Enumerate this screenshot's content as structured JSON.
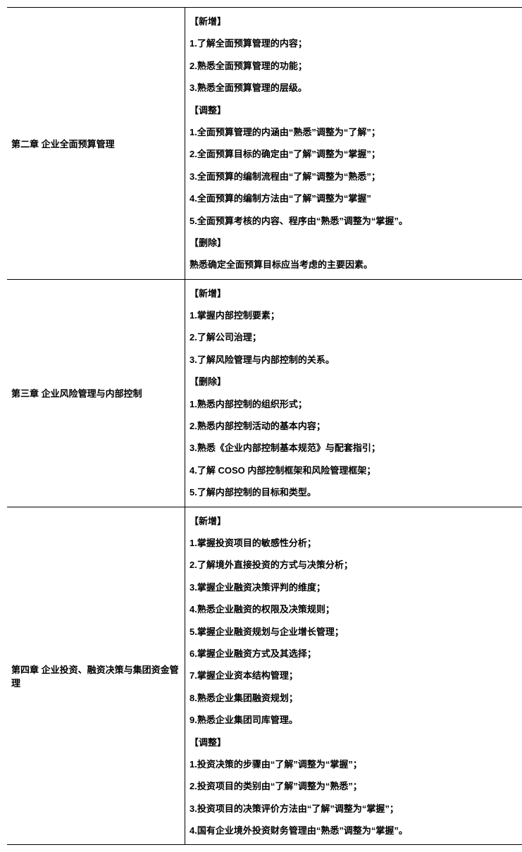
{
  "rows": [
    {
      "chapter": "第二章 企业全面预算管理",
      "lines": [
        "【新增】",
        "1.了解全面预算管理的内容；",
        "2.熟悉全面预算管理的功能；",
        "3.熟悉全面预算管理的层级。",
        "【调整】",
        "1.全面预算管理的内涵由“熟悉”调整为“了解”；",
        "2.全面预算目标的确定由“了解”调整为“掌握”；",
        "3.全面预算的编制流程由“了解”调整为“熟悉”；",
        "4.全面预算的编制方法由“了解”调整为“掌握”",
        "5.全面预算考核的内容、程序由“熟悉”调整为“掌握”。",
        "【删除】",
        "熟悉确定全面预算目标应当考虑的主要因素。"
      ]
    },
    {
      "chapter": "第三章 企业风险管理与内部控制",
      "lines": [
        "【新增】",
        "1.掌握内部控制要素；",
        "2.了解公司治理；",
        "3.了解风险管理与内部控制的关系。",
        "【删除】",
        "1.熟悉内部控制的组织形式；",
        "2.熟悉内部控制活动的基本内容；",
        "3.熟悉《企业内部控制基本规范》与配套指引；",
        "4.了解 COSO 内部控制框架和风险管理框架；",
        "5.了解内部控制的目标和类型。"
      ]
    },
    {
      "chapter": "第四章 企业投资、融资决策与集团资金管理",
      "lines": [
        "【新增】",
        "1.掌握投资项目的敏感性分析；",
        "2.了解境外直接投资的方式与决策分析；",
        "3.掌握企业融资决策评判的维度；",
        "4.熟悉企业融资的权限及决策规则；",
        "5.掌握企业融资规划与企业增长管理；",
        "6.掌握企业融资方式及其选择；",
        "7.掌握企业资本结构管理；",
        "8.熟悉企业集团融资规划；",
        "9.熟悉企业集团司库管理。",
        "【调整】",
        "1.投资决策的步骤由“了解”调整为“掌握”；",
        "2.投资项目的类别由“了解”调整为“熟悉”；",
        "3.投资项目的决策评价方法由“了解”调整为“掌握”；",
        "4.国有企业境外投资财务管理由“熟悉”调整为“掌握”。"
      ]
    }
  ]
}
